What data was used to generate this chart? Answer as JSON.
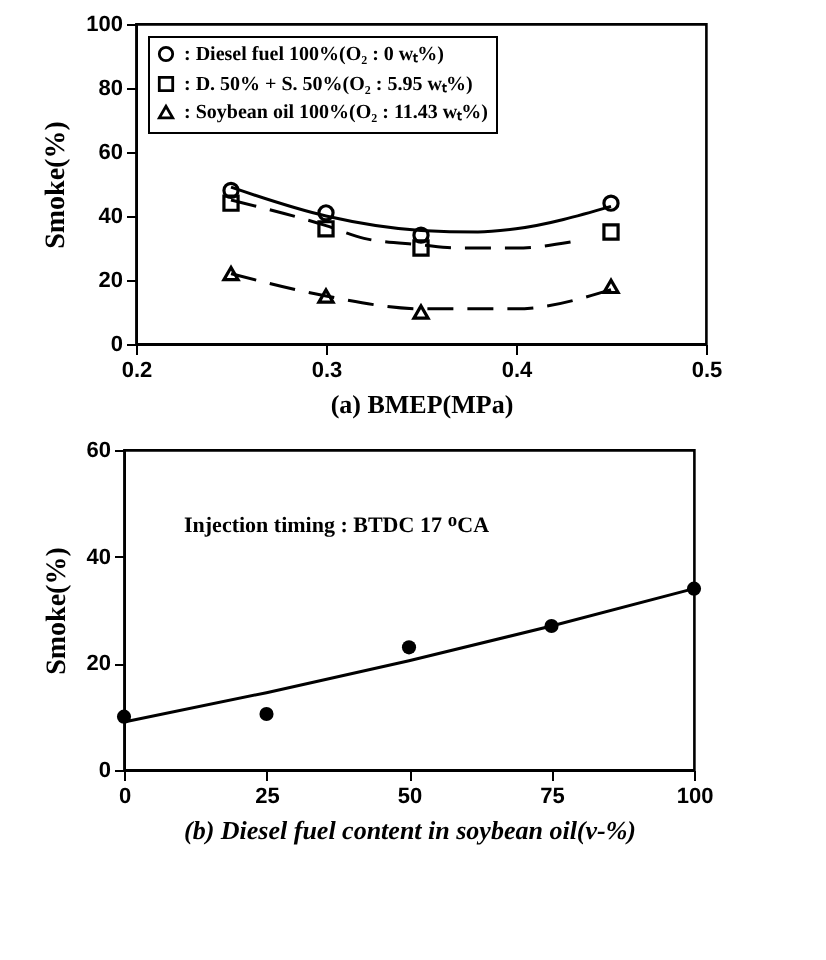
{
  "chart_data": [
    {
      "type": "scatter",
      "xlabel": "(a) BMEP(MPa)",
      "ylabel": "Smoke(%)",
      "xlim": [
        0.2,
        0.5
      ],
      "xticks": [
        0.2,
        0.3,
        0.4,
        0.5
      ],
      "ylim": [
        0,
        100
      ],
      "yticks": [
        0,
        20,
        40,
        60,
        80,
        100
      ],
      "legend": "top",
      "x": [
        0.25,
        0.3,
        0.35,
        0.45
      ],
      "series": [
        {
          "name": ": Diesel fuel 100%(O₂ : 0 wₜ%)",
          "color": "#000000",
          "marker": "circle",
          "values": [
            48,
            41,
            34,
            44
          ]
        },
        {
          "name": ": D. 50% + S. 50%(O₂ :  5.95 wₜ%)",
          "color": "#000000",
          "marker": "square",
          "values": [
            44,
            36,
            30,
            35
          ]
        },
        {
          "name": ": Soybean oil 100%(O₂ : 11.43 wₜ%)",
          "color": "#000000",
          "marker": "triangle",
          "values": [
            22,
            15,
            10,
            18
          ]
        },
        {
          "type": "line",
          "color": "#000000",
          "line_style": "solid",
          "marker": "none",
          "x": [
            0.25,
            0.3,
            0.35,
            0.38,
            0.4,
            0.45
          ],
          "values": [
            49,
            40,
            35.5,
            35,
            36,
            43
          ]
        },
        {
          "type": "line",
          "color": "#000000",
          "line_style": "dashed",
          "marker": "none",
          "x": [
            0.25,
            0.3,
            0.32,
            0.35,
            0.37,
            0.4,
            0.43
          ],
          "values": [
            45,
            37,
            33,
            31,
            30,
            30,
            32
          ]
        },
        {
          "type": "line",
          "color": "#000000",
          "line_style": "dashed",
          "marker": "none",
          "x": [
            0.25,
            0.3,
            0.35,
            0.4,
            0.45
          ],
          "values": [
            22,
            15,
            11,
            11,
            17
          ]
        }
      ]
    },
    {
      "type": "scatter",
      "xlabel": "(b) Diesel fuel content in soybean oil(v-%)",
      "ylabel": "Smoke(%)",
      "xlim": [
        0,
        100
      ],
      "xticks": [
        0,
        25,
        50,
        75,
        100
      ],
      "ylim": [
        0,
        60
      ],
      "yticks": [
        0,
        20,
        40,
        60
      ],
      "annotations": [
        "Injection timing : BTDC 17 ᴼCA"
      ],
      "x": [
        0,
        25,
        50,
        75,
        100
      ],
      "series": [
        {
          "color": "#000000",
          "marker": "circle",
          "values": [
            10,
            10.5,
            23,
            27,
            34
          ]
        },
        {
          "type": "line",
          "color": "#000000",
          "line_style": "solid",
          "marker": "none",
          "x": [
            0,
            25,
            50,
            75,
            100
          ],
          "values": [
            9,
            14.5,
            20.5,
            27,
            34
          ]
        }
      ]
    }
  ]
}
